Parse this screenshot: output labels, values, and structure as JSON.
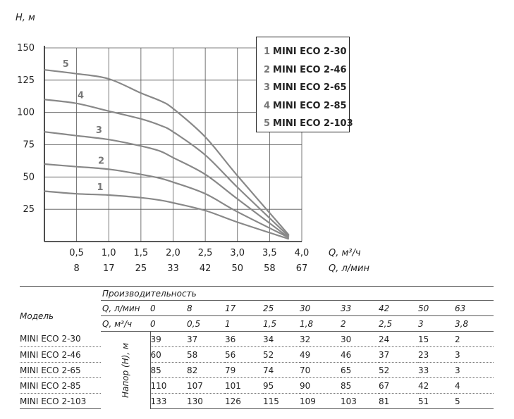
{
  "chart_data": {
    "type": "line",
    "y_axis_label": "H, м",
    "x_axis_label_m3h": "Q, м³/ч",
    "x_axis_label_lmin": "Q, л/мин",
    "y_ticks": [
      "25",
      "50",
      "75",
      "100",
      "125",
      "150"
    ],
    "x_ticks_m3h": [
      "0,5",
      "1,0",
      "1,5",
      "2,0",
      "2,5",
      "3,0",
      "3,5",
      "4,0"
    ],
    "x_ticks_lmin": [
      "8",
      "17",
      "25",
      "33",
      "42",
      "50",
      "58",
      "67"
    ],
    "xlim": [
      0,
      4.0
    ],
    "ylim": [
      0,
      150
    ],
    "grid": true,
    "legend_position": "top-right",
    "x": [
      0,
      0.5,
      1.0,
      1.5,
      1.8,
      2.0,
      2.5,
      3.0,
      3.8
    ],
    "series": [
      {
        "num": "1",
        "name": "MINI ECO 2-30",
        "values": [
          39,
          37,
          36,
          34,
          32,
          30,
          24,
          15,
          2
        ]
      },
      {
        "num": "2",
        "name": "MINI ECO 2-46",
        "values": [
          60,
          58,
          56,
          52,
          49,
          46,
          37,
          23,
          3
        ]
      },
      {
        "num": "3",
        "name": "MINI ECO 2-65",
        "values": [
          85,
          82,
          79,
          74,
          70,
          65,
          52,
          33,
          3
        ]
      },
      {
        "num": "4",
        "name": "MINI ECO 2-85",
        "values": [
          110,
          107,
          101,
          95,
          90,
          85,
          67,
          42,
          4
        ]
      },
      {
        "num": "5",
        "name": "MINI ECO 2-103",
        "values": [
          133,
          130,
          126,
          115,
          109,
          103,
          81,
          51,
          5
        ]
      }
    ],
    "curve_color": "#888888"
  },
  "table": {
    "title_performance": "Производительность",
    "model_header": "Модель",
    "q_lmin_label": "Q, л/мин",
    "q_m3h_label": "Q, м³/ч",
    "head_label": "Напор (H), м",
    "q_lmin": [
      "0",
      "8",
      "17",
      "25",
      "30",
      "33",
      "42",
      "50",
      "63"
    ],
    "q_m3h": [
      "0",
      "0,5",
      "1",
      "1,5",
      "1,8",
      "2",
      "2,5",
      "3",
      "3,8"
    ],
    "rows": [
      {
        "model": "MINI ECO 2-30",
        "values": [
          "39",
          "37",
          "36",
          "34",
          "32",
          "30",
          "24",
          "15",
          "2"
        ]
      },
      {
        "model": "MINI ECO 2-46",
        "values": [
          "60",
          "58",
          "56",
          "52",
          "49",
          "46",
          "37",
          "23",
          "3"
        ]
      },
      {
        "model": "MINI ECO 2-65",
        "values": [
          "85",
          "82",
          "79",
          "74",
          "70",
          "65",
          "52",
          "33",
          "3"
        ]
      },
      {
        "model": "MINI ECO 2-85",
        "values": [
          "110",
          "107",
          "101",
          "95",
          "90",
          "85",
          "67",
          "42",
          "4"
        ]
      },
      {
        "model": "MINI ECO 2-103",
        "values": [
          "133",
          "130",
          "126",
          "115",
          "109",
          "103",
          "81",
          "51",
          "5"
        ]
      }
    ]
  }
}
